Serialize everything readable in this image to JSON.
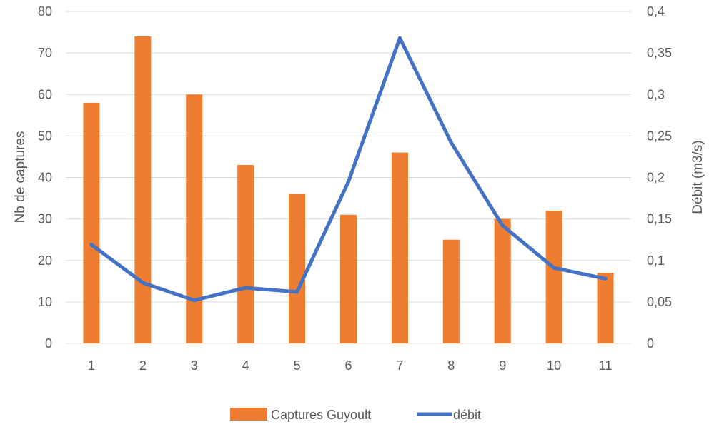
{
  "chart_data": {
    "type": "bar",
    "categories": [
      "1",
      "2",
      "3",
      "4",
      "5",
      "6",
      "7",
      "8",
      "9",
      "10",
      "11"
    ],
    "series": [
      {
        "name": "Captures Guyoult",
        "type": "bar",
        "axis": "left",
        "color": "#ED7D31",
        "values": [
          58,
          74,
          60,
          43,
          36,
          31,
          46,
          25,
          30,
          32,
          17
        ]
      },
      {
        "name": "débit",
        "type": "line",
        "axis": "right",
        "color": "#4472C4",
        "values": [
          0.119,
          0.073,
          0.052,
          0.067,
          0.062,
          0.195,
          0.368,
          0.242,
          0.142,
          0.091,
          0.078
        ]
      }
    ],
    "ylabel": "Nb de captures",
    "y2label": "Débit (m3/s)",
    "ylim": [
      0,
      80
    ],
    "y2lim": [
      0,
      0.4
    ],
    "yticks": [
      "0",
      "10",
      "20",
      "30",
      "40",
      "50",
      "60",
      "70",
      "80"
    ],
    "y2ticks": [
      "0",
      "0,05",
      "0,1",
      "0,15",
      "0,2",
      "0,25",
      "0,3",
      "0,35",
      "0,4"
    ],
    "grid": true,
    "legend_position": "bottom"
  }
}
